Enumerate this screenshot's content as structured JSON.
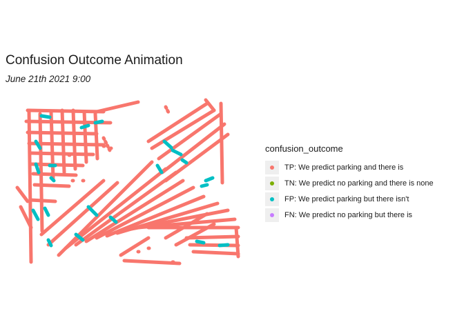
{
  "header": {
    "title": "Confusion Outcome Animation",
    "subtitle": "June 21th 2021 9:00"
  },
  "legend": {
    "title": "confusion_outcome",
    "items": [
      {
        "label": "TP: We predict parking and there is",
        "color": "#F8766D"
      },
      {
        "label": "TN: We predict no parking and there is none",
        "color": "#7CAE00"
      },
      {
        "label": "FP: We predict parking but there isn't",
        "color": "#00BFC4"
      },
      {
        "label": "FN: We predict no parking but there is",
        "color": "#C77CFF"
      }
    ]
  },
  "map": {
    "tp_color": "#F8766D",
    "fp_color": "#00BFC4"
  }
}
